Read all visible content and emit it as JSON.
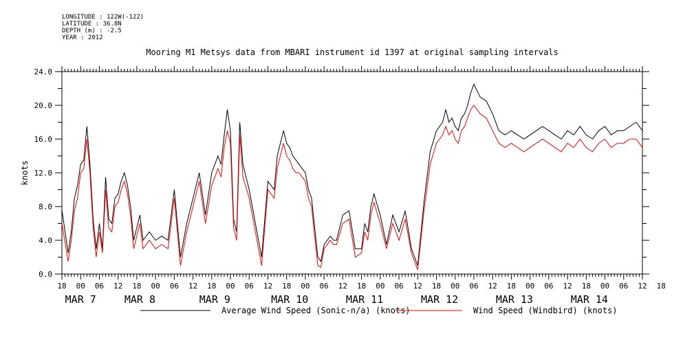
{
  "header": {
    "longitude": "LONGITUDE : 122W(-122)",
    "latitude": "LATITUDE : 36.8N",
    "depth": "DEPTH (m) : -2.5",
    "year": "YEAR : 2012"
  },
  "chart_data": {
    "type": "line",
    "title": "Mooring M1 Metsys data from MBARI instrument id 1397 at original sampling intervals",
    "ylabel": "knots",
    "ylim": [
      0,
      24
    ],
    "yticks": [
      "0.0",
      "4.0",
      "8.0",
      "12.0",
      "16.0",
      "20.0",
      "24.0"
    ],
    "x_hour_start": 18,
    "x_hour_end": 204,
    "x_tick_labels": [
      "18",
      "00",
      "06",
      "12",
      "18",
      "00",
      "06",
      "12",
      "18",
      "00",
      "06",
      "12",
      "18",
      "00",
      "06",
      "12",
      "18",
      "00",
      "06",
      "12",
      "18",
      "00",
      "06",
      "12",
      "18",
      "00",
      "06",
      "12",
      "18",
      "00",
      "06",
      "12",
      "18"
    ],
    "date_labels": [
      {
        "label": "MAR  7",
        "hour": 24
      },
      {
        "label": "MAR  8",
        "hour": 43
      },
      {
        "label": "MAR  9",
        "hour": 67
      },
      {
        "label": "MAR 10",
        "hour": 91
      },
      {
        "label": "MAR 11",
        "hour": 115
      },
      {
        "label": "MAR 12",
        "hour": 139
      },
      {
        "label": "MAR 13",
        "hour": 163
      },
      {
        "label": "MAR 14",
        "hour": 187
      }
    ],
    "legend": [
      {
        "label": "Average Wind Speed (Sonic-n/a) (knots)",
        "color": "#000000"
      },
      {
        "label": "Wind Speed (Windbird) (knots)",
        "color": "#ff0000"
      }
    ],
    "series": [
      {
        "name": "Average Wind Speed (Sonic-n/a) (knots)",
        "color": "#000000",
        "x": [
          18,
          20,
          21,
          22,
          23,
          24,
          25,
          26,
          27,
          28,
          29,
          30,
          31,
          32,
          33,
          34,
          35,
          36,
          37,
          38,
          39,
          40,
          41,
          42,
          43,
          44,
          46,
          48,
          50,
          52,
          54,
          56,
          58,
          60,
          62,
          64,
          66,
          68,
          69,
          70,
          71,
          72,
          73,
          74,
          75,
          76,
          78,
          80,
          82,
          84,
          86,
          87,
          88,
          89,
          90,
          91,
          92,
          93,
          94,
          95,
          96,
          97,
          98,
          99,
          100,
          101,
          102,
          103,
          104,
          105,
          106,
          108,
          110,
          112,
          114,
          115,
          116,
          117,
          118,
          120,
          122,
          124,
          126,
          128,
          130,
          132,
          134,
          136,
          138,
          139,
          140,
          141,
          142,
          143,
          144,
          145,
          146,
          147,
          148,
          149,
          150,
          152,
          154,
          156,
          158,
          160,
          162,
          164,
          166,
          168,
          170,
          172,
          174,
          176,
          178,
          180,
          182,
          184,
          186,
          188,
          190,
          192,
          194,
          196,
          198,
          200,
          202,
          204
        ],
        "values": [
          7.6,
          2.5,
          5.0,
          9.0,
          10.5,
          13.0,
          13.5,
          17.5,
          13.0,
          6.5,
          3.0,
          6.0,
          3.0,
          11.5,
          6.5,
          6.0,
          9.0,
          9.5,
          11.0,
          12.0,
          10.5,
          8.0,
          4.0,
          5.5,
          7.0,
          4.0,
          5.0,
          4.0,
          4.5,
          4.0,
          10.0,
          2.0,
          6.0,
          9.0,
          12.0,
          7.0,
          12.0,
          14.0,
          13.0,
          16.5,
          19.5,
          17.0,
          6.5,
          5.0,
          18.0,
          13.0,
          10.0,
          6.0,
          2.0,
          11.0,
          10.0,
          14.0,
          15.5,
          17.0,
          15.5,
          15.0,
          14.0,
          13.5,
          13.0,
          12.5,
          12.0,
          10.0,
          9.0,
          5.5,
          2.0,
          1.5,
          3.5,
          4.0,
          4.5,
          4.0,
          4.0,
          7.0,
          7.5,
          3.0,
          3.0,
          6.0,
          5.0,
          8.0,
          9.5,
          7.0,
          3.5,
          7.0,
          5.0,
          7.5,
          3.0,
          1.0,
          8.5,
          14.5,
          17.0,
          17.5,
          18.0,
          19.5,
          18.0,
          18.5,
          17.5,
          17.0,
          18.5,
          19.0,
          20.0,
          21.5,
          22.5,
          21.0,
          20.5,
          19.0,
          17.0,
          16.5,
          17.0,
          16.5,
          16.0,
          16.5,
          17.0,
          17.5,
          17.0,
          16.5,
          16.0,
          17.0,
          16.5,
          17.5,
          16.5,
          16.0,
          17.0,
          17.5,
          16.5,
          17.0,
          17.0,
          17.5,
          18.0,
          17.0
        ]
      },
      {
        "name": "Wind Speed (Windbird) (knots)",
        "color": "#ff0000",
        "x": [
          18,
          20,
          21,
          22,
          23,
          24,
          25,
          26,
          27,
          28,
          29,
          30,
          31,
          32,
          33,
          34,
          35,
          36,
          37,
          38,
          39,
          40,
          41,
          42,
          43,
          44,
          46,
          48,
          50,
          52,
          54,
          56,
          58,
          60,
          62,
          64,
          66,
          68,
          69,
          70,
          71,
          72,
          73,
          74,
          75,
          76,
          78,
          80,
          82,
          84,
          86,
          87,
          88,
          89,
          90,
          91,
          92,
          93,
          94,
          95,
          96,
          97,
          98,
          99,
          100,
          101,
          102,
          103,
          104,
          105,
          106,
          108,
          110,
          112,
          114,
          115,
          116,
          117,
          118,
          120,
          122,
          124,
          126,
          128,
          130,
          132,
          134,
          136,
          138,
          139,
          140,
          141,
          142,
          143,
          144,
          145,
          146,
          147,
          148,
          149,
          150,
          152,
          154,
          156,
          158,
          160,
          162,
          164,
          166,
          168,
          170,
          172,
          174,
          176,
          178,
          180,
          182,
          184,
          186,
          188,
          190,
          192,
          194,
          196,
          198,
          200,
          202,
          204
        ],
        "values": [
          6.0,
          1.5,
          4.0,
          7.5,
          9.0,
          12.0,
          12.5,
          16.0,
          12.0,
          5.5,
          2.0,
          5.0,
          2.5,
          10.0,
          5.5,
          5.0,
          8.0,
          8.5,
          10.0,
          11.0,
          9.5,
          7.0,
          3.0,
          4.5,
          6.0,
          3.0,
          4.0,
          3.0,
          3.5,
          3.0,
          9.0,
          1.0,
          5.0,
          8.0,
          11.0,
          6.0,
          10.5,
          12.5,
          11.5,
          15.0,
          17.0,
          15.5,
          5.5,
          4.0,
          16.5,
          11.5,
          9.0,
          5.0,
          1.0,
          10.0,
          9.0,
          12.5,
          14.0,
          15.5,
          14.0,
          13.5,
          12.5,
          12.0,
          12.0,
          11.5,
          11.0,
          9.0,
          8.0,
          4.5,
          1.0,
          0.8,
          3.0,
          3.5,
          4.0,
          3.5,
          3.5,
          6.0,
          6.5,
          2.0,
          2.5,
          5.0,
          4.0,
          7.0,
          8.5,
          6.0,
          3.0,
          6.0,
          4.0,
          6.5,
          2.5,
          0.5,
          7.5,
          13.0,
          15.5,
          16.0,
          16.5,
          17.5,
          16.5,
          17.0,
          16.0,
          15.5,
          17.0,
          17.5,
          18.5,
          19.5,
          20.0,
          19.0,
          18.5,
          17.0,
          15.5,
          15.0,
          15.5,
          15.0,
          14.5,
          15.0,
          15.5,
          16.0,
          15.5,
          15.0,
          14.5,
          15.5,
          15.0,
          16.0,
          15.0,
          14.5,
          15.5,
          16.0,
          15.0,
          15.5,
          15.5,
          16.0,
          16.0,
          15.0
        ]
      }
    ]
  }
}
